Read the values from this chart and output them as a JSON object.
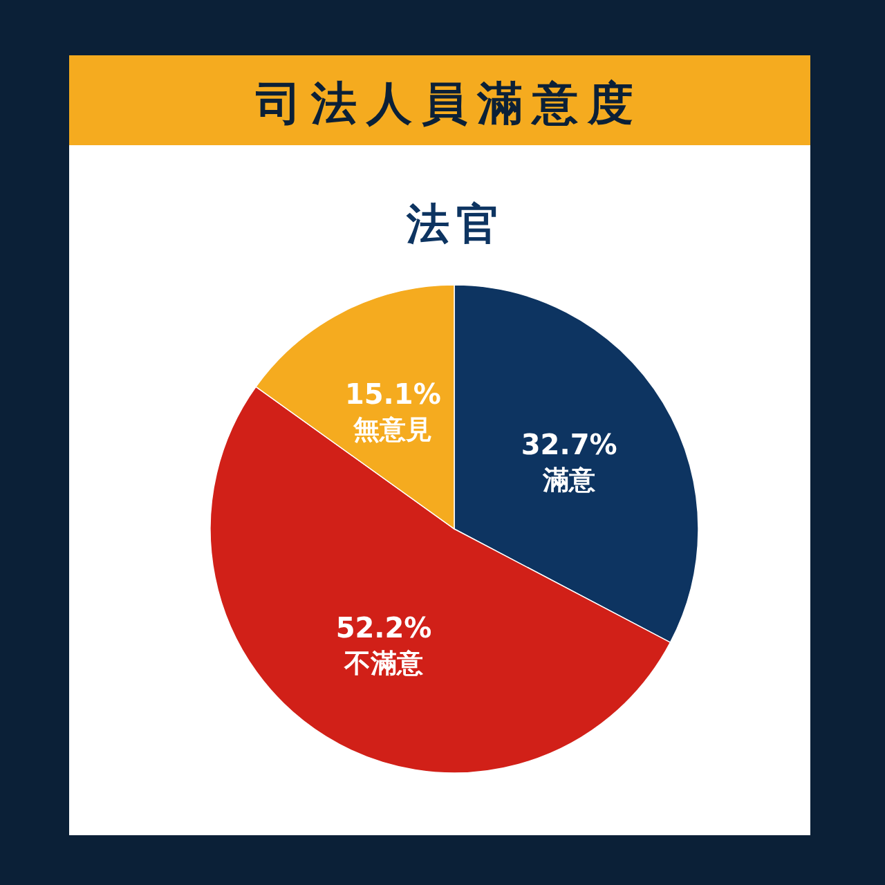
{
  "chart_data": {
    "type": "pie",
    "title": "司法人員滿意度",
    "subtitle": "法官",
    "categories": [
      "滿意",
      "不滿意",
      "無意見"
    ],
    "values": [
      32.7,
      52.2,
      15.1
    ],
    "value_labels": [
      "32.7%",
      "52.2%",
      "15.1%"
    ],
    "colors": [
      "#0d3461",
      "#d12018",
      "#f5ab1f"
    ],
    "legend": false
  }
}
